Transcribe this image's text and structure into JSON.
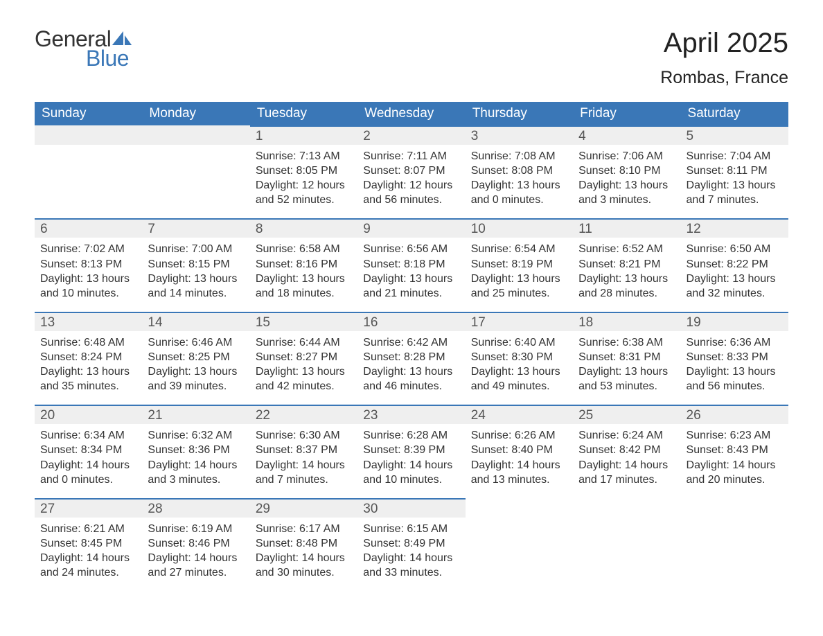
{
  "brand": {
    "line1": "General",
    "line2": "Blue",
    "accent_color": "#3a77b7"
  },
  "title": {
    "month": "April 2025",
    "location": "Rombas, France"
  },
  "colors": {
    "header_bg": "#3a77b7",
    "header_text": "#ffffff",
    "daynum_bg": "#efefef",
    "week_divider": "#3a77b7",
    "body_text": "#333333",
    "page_bg": "#ffffff"
  },
  "weekdays": [
    "Sunday",
    "Monday",
    "Tuesday",
    "Wednesday",
    "Thursday",
    "Friday",
    "Saturday"
  ],
  "weeks": [
    [
      {
        "day": "",
        "sunrise": "",
        "sunset": "",
        "daylight": ""
      },
      {
        "day": "",
        "sunrise": "",
        "sunset": "",
        "daylight": ""
      },
      {
        "day": "1",
        "sunrise": "Sunrise: 7:13 AM",
        "sunset": "Sunset: 8:05 PM",
        "daylight": "Daylight: 12 hours and 52 minutes."
      },
      {
        "day": "2",
        "sunrise": "Sunrise: 7:11 AM",
        "sunset": "Sunset: 8:07 PM",
        "daylight": "Daylight: 12 hours and 56 minutes."
      },
      {
        "day": "3",
        "sunrise": "Sunrise: 7:08 AM",
        "sunset": "Sunset: 8:08 PM",
        "daylight": "Daylight: 13 hours and 0 minutes."
      },
      {
        "day": "4",
        "sunrise": "Sunrise: 7:06 AM",
        "sunset": "Sunset: 8:10 PM",
        "daylight": "Daylight: 13 hours and 3 minutes."
      },
      {
        "day": "5",
        "sunrise": "Sunrise: 7:04 AM",
        "sunset": "Sunset: 8:11 PM",
        "daylight": "Daylight: 13 hours and 7 minutes."
      }
    ],
    [
      {
        "day": "6",
        "sunrise": "Sunrise: 7:02 AM",
        "sunset": "Sunset: 8:13 PM",
        "daylight": "Daylight: 13 hours and 10 minutes."
      },
      {
        "day": "7",
        "sunrise": "Sunrise: 7:00 AM",
        "sunset": "Sunset: 8:15 PM",
        "daylight": "Daylight: 13 hours and 14 minutes."
      },
      {
        "day": "8",
        "sunrise": "Sunrise: 6:58 AM",
        "sunset": "Sunset: 8:16 PM",
        "daylight": "Daylight: 13 hours and 18 minutes."
      },
      {
        "day": "9",
        "sunrise": "Sunrise: 6:56 AM",
        "sunset": "Sunset: 8:18 PM",
        "daylight": "Daylight: 13 hours and 21 minutes."
      },
      {
        "day": "10",
        "sunrise": "Sunrise: 6:54 AM",
        "sunset": "Sunset: 8:19 PM",
        "daylight": "Daylight: 13 hours and 25 minutes."
      },
      {
        "day": "11",
        "sunrise": "Sunrise: 6:52 AM",
        "sunset": "Sunset: 8:21 PM",
        "daylight": "Daylight: 13 hours and 28 minutes."
      },
      {
        "day": "12",
        "sunrise": "Sunrise: 6:50 AM",
        "sunset": "Sunset: 8:22 PM",
        "daylight": "Daylight: 13 hours and 32 minutes."
      }
    ],
    [
      {
        "day": "13",
        "sunrise": "Sunrise: 6:48 AM",
        "sunset": "Sunset: 8:24 PM",
        "daylight": "Daylight: 13 hours and 35 minutes."
      },
      {
        "day": "14",
        "sunrise": "Sunrise: 6:46 AM",
        "sunset": "Sunset: 8:25 PM",
        "daylight": "Daylight: 13 hours and 39 minutes."
      },
      {
        "day": "15",
        "sunrise": "Sunrise: 6:44 AM",
        "sunset": "Sunset: 8:27 PM",
        "daylight": "Daylight: 13 hours and 42 minutes."
      },
      {
        "day": "16",
        "sunrise": "Sunrise: 6:42 AM",
        "sunset": "Sunset: 8:28 PM",
        "daylight": "Daylight: 13 hours and 46 minutes."
      },
      {
        "day": "17",
        "sunrise": "Sunrise: 6:40 AM",
        "sunset": "Sunset: 8:30 PM",
        "daylight": "Daylight: 13 hours and 49 minutes."
      },
      {
        "day": "18",
        "sunrise": "Sunrise: 6:38 AM",
        "sunset": "Sunset: 8:31 PM",
        "daylight": "Daylight: 13 hours and 53 minutes."
      },
      {
        "day": "19",
        "sunrise": "Sunrise: 6:36 AM",
        "sunset": "Sunset: 8:33 PM",
        "daylight": "Daylight: 13 hours and 56 minutes."
      }
    ],
    [
      {
        "day": "20",
        "sunrise": "Sunrise: 6:34 AM",
        "sunset": "Sunset: 8:34 PM",
        "daylight": "Daylight: 14 hours and 0 minutes."
      },
      {
        "day": "21",
        "sunrise": "Sunrise: 6:32 AM",
        "sunset": "Sunset: 8:36 PM",
        "daylight": "Daylight: 14 hours and 3 minutes."
      },
      {
        "day": "22",
        "sunrise": "Sunrise: 6:30 AM",
        "sunset": "Sunset: 8:37 PM",
        "daylight": "Daylight: 14 hours and 7 minutes."
      },
      {
        "day": "23",
        "sunrise": "Sunrise: 6:28 AM",
        "sunset": "Sunset: 8:39 PM",
        "daylight": "Daylight: 14 hours and 10 minutes."
      },
      {
        "day": "24",
        "sunrise": "Sunrise: 6:26 AM",
        "sunset": "Sunset: 8:40 PM",
        "daylight": "Daylight: 14 hours and 13 minutes."
      },
      {
        "day": "25",
        "sunrise": "Sunrise: 6:24 AM",
        "sunset": "Sunset: 8:42 PM",
        "daylight": "Daylight: 14 hours and 17 minutes."
      },
      {
        "day": "26",
        "sunrise": "Sunrise: 6:23 AM",
        "sunset": "Sunset: 8:43 PM",
        "daylight": "Daylight: 14 hours and 20 minutes."
      }
    ],
    [
      {
        "day": "27",
        "sunrise": "Sunrise: 6:21 AM",
        "sunset": "Sunset: 8:45 PM",
        "daylight": "Daylight: 14 hours and 24 minutes."
      },
      {
        "day": "28",
        "sunrise": "Sunrise: 6:19 AM",
        "sunset": "Sunset: 8:46 PM",
        "daylight": "Daylight: 14 hours and 27 minutes."
      },
      {
        "day": "29",
        "sunrise": "Sunrise: 6:17 AM",
        "sunset": "Sunset: 8:48 PM",
        "daylight": "Daylight: 14 hours and 30 minutes."
      },
      {
        "day": "30",
        "sunrise": "Sunrise: 6:15 AM",
        "sunset": "Sunset: 8:49 PM",
        "daylight": "Daylight: 14 hours and 33 minutes."
      },
      {
        "day": "",
        "sunrise": "",
        "sunset": "",
        "daylight": ""
      },
      {
        "day": "",
        "sunrise": "",
        "sunset": "",
        "daylight": ""
      },
      {
        "day": "",
        "sunrise": "",
        "sunset": "",
        "daylight": ""
      }
    ]
  ]
}
